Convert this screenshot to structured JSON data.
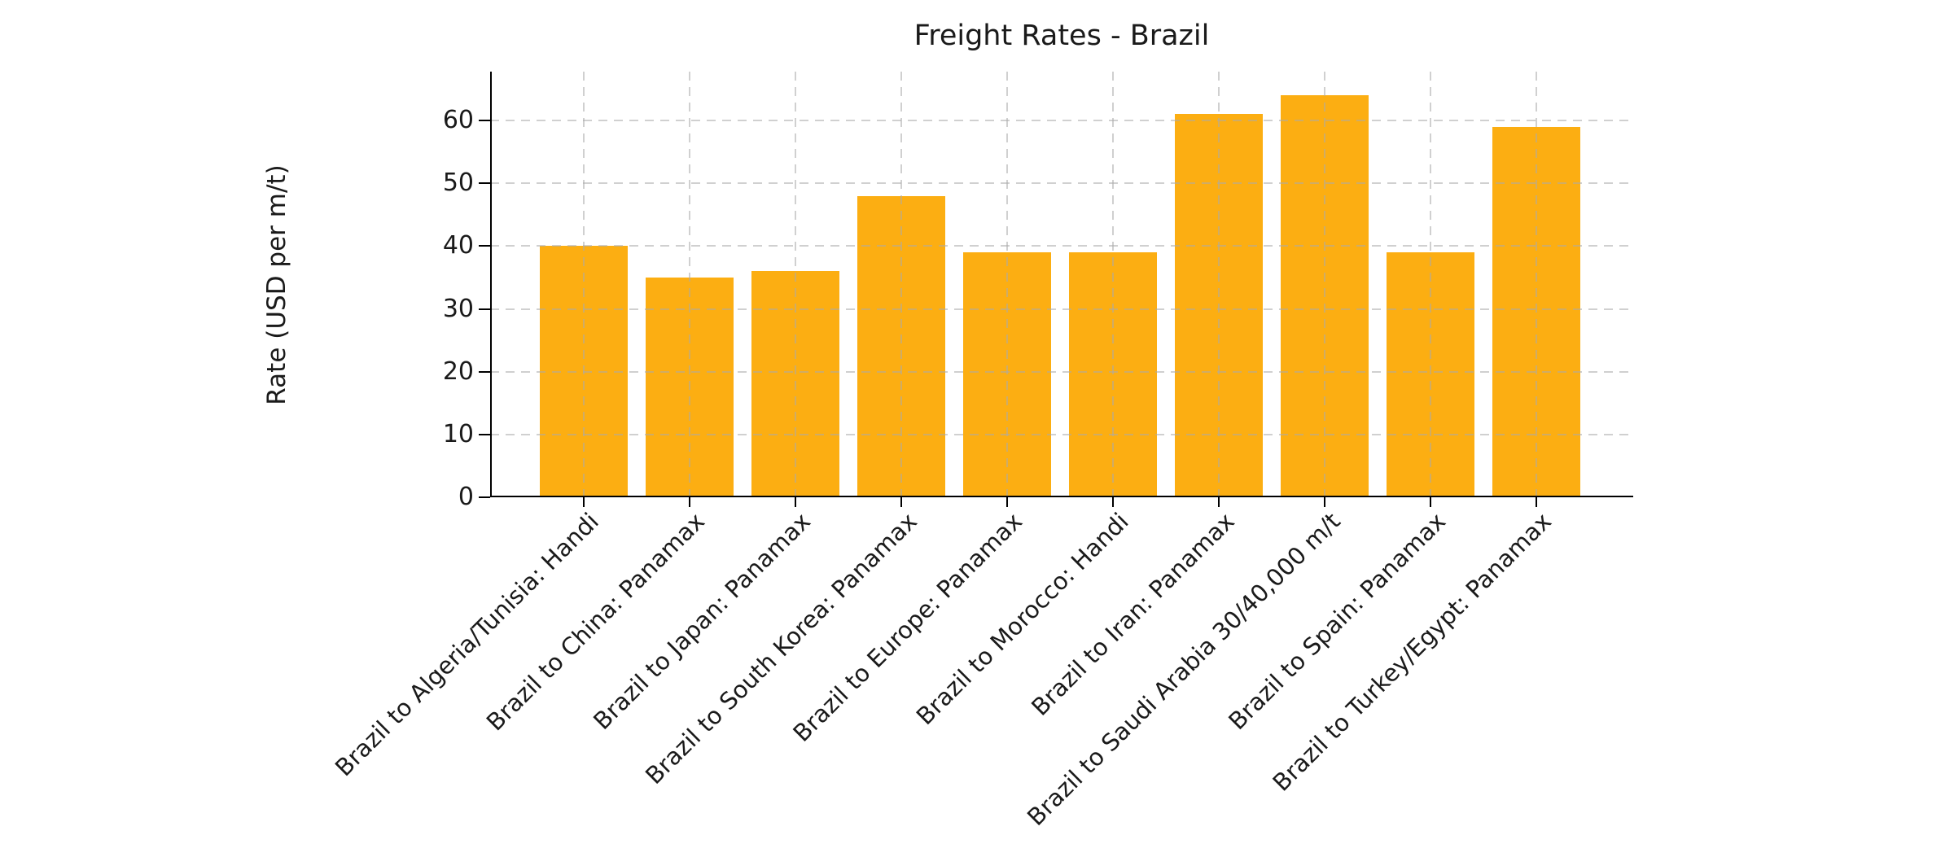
{
  "chart_data": {
    "type": "bar",
    "title": "Freight Rates - Brazil",
    "ylabel": "Rate (USD per m/t)",
    "xlabel": "",
    "categories": [
      "Brazil to Algeria/Tunisia: Handi",
      "Brazil to China: Panamax",
      "Brazil to Japan: Panamax",
      "Brazil to South Korea: Panamax",
      "Brazil to Europe: Panamax",
      "Brazil to Morocco: Handi",
      "Brazil to Iran: Panamax",
      "Brazil to Saudi Arabia 30/40,000 m/t",
      "Brazil to Spain: Panamax",
      "Brazil to Turkey/Egypt: Panamax"
    ],
    "values": [
      40,
      35,
      36,
      48,
      39,
      39,
      61,
      64,
      39,
      59
    ],
    "yticks": [
      0,
      10,
      20,
      30,
      40,
      50,
      60
    ],
    "ylim": [
      0,
      67.8
    ],
    "grid": true,
    "grid_linestyle": "dashed",
    "legend": "none",
    "bar_color": "#FCAE12",
    "axis_color": "#000000",
    "grid_color": "#cfcfcf",
    "text_color": "#1a1a1a",
    "background_color": "#ffffff"
  }
}
